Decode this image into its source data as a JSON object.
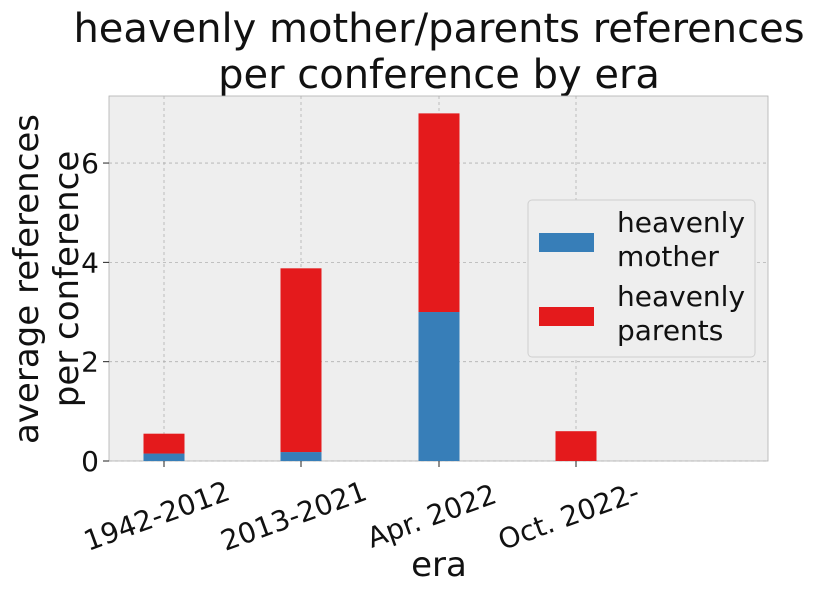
{
  "chart_data": {
    "type": "bar",
    "stacked": true,
    "title": "heavenly mother/parents references\nper conference by era",
    "title_lines": [
      "heavenly mother/parents references",
      "per conference by era"
    ],
    "xlabel": "era",
    "ylabel": "average references\nper conference",
    "ylabel_lines": [
      "average references",
      "per conference"
    ],
    "categories": [
      "1942-2012",
      "2013-2021",
      "Apr. 2022",
      "Oct. 2022-"
    ],
    "series": [
      {
        "name": "heavenly mother",
        "values": [
          0.15,
          0.18,
          3.0,
          0.0
        ],
        "color": "#377eb8"
      },
      {
        "name": "heavenly parents",
        "values": [
          0.4,
          3.7,
          4.0,
          0.6
        ],
        "color": "#e41a1c"
      }
    ],
    "ylim": [
      0,
      7.35
    ],
    "yticks": [
      0,
      2,
      4,
      6
    ],
    "ytick_labels": [
      "0",
      "2",
      "4",
      "6"
    ],
    "grid": true,
    "legend_position": "right",
    "legend_entries": [
      {
        "label_lines": [
          "heavenly",
          "mother"
        ],
        "color": "#377eb8"
      },
      {
        "label_lines": [
          "heavenly",
          "parents"
        ],
        "color": "#e41a1c"
      }
    ],
    "background_color": "#eeeeee",
    "grid_color": "#b0b0b0"
  }
}
